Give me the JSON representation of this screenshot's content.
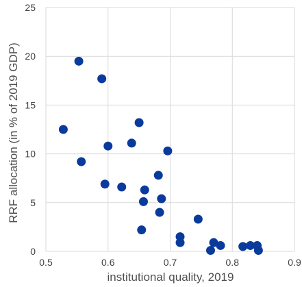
{
  "chart_data": {
    "type": "scatter",
    "title": "",
    "xlabel": "institutional quality, 2019",
    "ylabel": "RRF allocation (in % of 2019 GDP)",
    "xlim": [
      0.5,
      0.9
    ],
    "ylim": [
      0,
      25
    ],
    "xticks": [
      "0.5",
      "0.6",
      "0.7",
      "0.8",
      "0.9"
    ],
    "yticks": [
      "0",
      "5",
      "10",
      "15",
      "20",
      "25"
    ],
    "grid": true,
    "legend": "none",
    "marker_color": "#0a3b9c",
    "points": [
      {
        "x": 0.553,
        "y": 19.5
      },
      {
        "x": 0.59,
        "y": 17.7
      },
      {
        "x": 0.528,
        "y": 12.5
      },
      {
        "x": 0.65,
        "y": 13.2
      },
      {
        "x": 0.638,
        "y": 11.1
      },
      {
        "x": 0.6,
        "y": 10.8
      },
      {
        "x": 0.696,
        "y": 10.3
      },
      {
        "x": 0.557,
        "y": 9.2
      },
      {
        "x": 0.681,
        "y": 7.8
      },
      {
        "x": 0.595,
        "y": 6.9
      },
      {
        "x": 0.622,
        "y": 6.6
      },
      {
        "x": 0.659,
        "y": 6.3
      },
      {
        "x": 0.686,
        "y": 5.4
      },
      {
        "x": 0.657,
        "y": 5.1
      },
      {
        "x": 0.683,
        "y": 4.0
      },
      {
        "x": 0.745,
        "y": 3.3
      },
      {
        "x": 0.654,
        "y": 2.2
      },
      {
        "x": 0.716,
        "y": 1.5
      },
      {
        "x": 0.716,
        "y": 0.9
      },
      {
        "x": 0.77,
        "y": 0.9
      },
      {
        "x": 0.781,
        "y": 0.6
      },
      {
        "x": 0.765,
        "y": 0.1
      },
      {
        "x": 0.817,
        "y": 0.5
      },
      {
        "x": 0.829,
        "y": 0.6
      },
      {
        "x": 0.84,
        "y": 0.6
      },
      {
        "x": 0.842,
        "y": 0.1
      }
    ]
  }
}
